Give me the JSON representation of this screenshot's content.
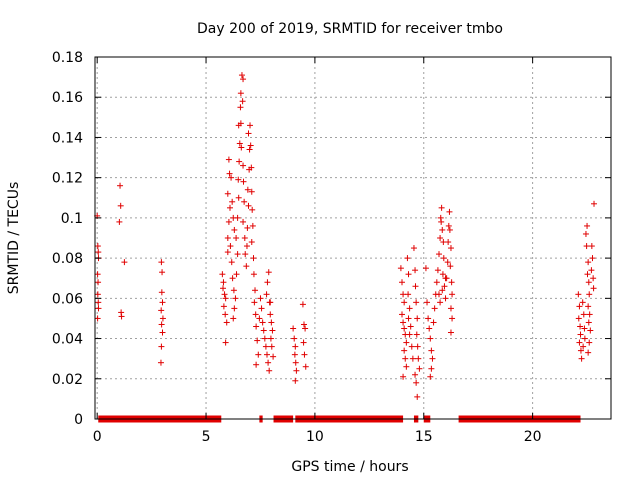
{
  "chart_data": {
    "type": "scatter",
    "title": "Day 200 of 2019, SRMTID for receiver tmbo",
    "xlabel": "GPS time / hours",
    "ylabel": "SRMTID / TECUs",
    "xlim": [
      -0.1,
      23.6
    ],
    "ylim": [
      0,
      0.18
    ],
    "xticks": [
      0,
      5,
      10,
      15,
      20
    ],
    "xtick_labels": [
      "0",
      "5",
      "10",
      "15",
      "20"
    ],
    "yticks": [
      0,
      0.02,
      0.04,
      0.06,
      0.08,
      0.1,
      0.12,
      0.14,
      0.16,
      0.18
    ],
    "ytick_labels": [
      "0",
      "0.02",
      "0.04",
      "0.06",
      "0.08",
      "0.1",
      "0.12",
      "0.14",
      "0.16",
      "0.18"
    ],
    "grid": true,
    "marker": "+",
    "color": "#e00000",
    "zero_line_segments": [
      [
        0.05,
        5.7
      ],
      [
        7.45,
        7.6
      ],
      [
        8.1,
        9.0
      ],
      [
        9.1,
        14.05
      ],
      [
        14.55,
        14.75
      ],
      [
        15.0,
        15.3
      ],
      [
        16.6,
        22.2
      ]
    ],
    "series": [
      {
        "name": "SRMTID",
        "points": [
          [
            0.0,
            0.101
          ],
          [
            0.03,
            0.086
          ],
          [
            0.05,
            0.083
          ],
          [
            0.06,
            0.08
          ],
          [
            0.02,
            0.072
          ],
          [
            0.04,
            0.068
          ],
          [
            0.03,
            0.062
          ],
          [
            0.05,
            0.058
          ],
          [
            0.06,
            0.055
          ],
          [
            0.02,
            0.05
          ],
          [
            1.05,
            0.116
          ],
          [
            1.08,
            0.106
          ],
          [
            1.02,
            0.098
          ],
          [
            1.25,
            0.078
          ],
          [
            1.1,
            0.053
          ],
          [
            1.12,
            0.051
          ],
          [
            2.95,
            0.078
          ],
          [
            2.98,
            0.073
          ],
          [
            2.97,
            0.063
          ],
          [
            3.0,
            0.058
          ],
          [
            2.94,
            0.054
          ],
          [
            3.02,
            0.05
          ],
          [
            2.96,
            0.047
          ],
          [
            3.0,
            0.043
          ],
          [
            2.95,
            0.036
          ],
          [
            2.93,
            0.028
          ],
          [
            5.75,
            0.072
          ],
          [
            5.8,
            0.068
          ],
          [
            5.78,
            0.065
          ],
          [
            5.85,
            0.062
          ],
          [
            5.9,
            0.06
          ],
          [
            5.82,
            0.056
          ],
          [
            5.88,
            0.052
          ],
          [
            5.95,
            0.048
          ],
          [
            5.9,
            0.038
          ],
          [
            6.0,
            0.083
          ],
          [
            6.0,
            0.09
          ],
          [
            6.05,
            0.098
          ],
          [
            6.1,
            0.105
          ],
          [
            6.0,
            0.112
          ],
          [
            6.08,
            0.122
          ],
          [
            6.05,
            0.129
          ],
          [
            6.15,
            0.12
          ],
          [
            6.2,
            0.108
          ],
          [
            6.25,
            0.1
          ],
          [
            6.3,
            0.094
          ],
          [
            6.12,
            0.086
          ],
          [
            6.18,
            0.078
          ],
          [
            6.22,
            0.07
          ],
          [
            6.28,
            0.064
          ],
          [
            6.35,
            0.06
          ],
          [
            6.3,
            0.055
          ],
          [
            6.25,
            0.05
          ],
          [
            6.4,
            0.072
          ],
          [
            6.45,
            0.082
          ],
          [
            6.38,
            0.09
          ],
          [
            6.45,
            0.1
          ],
          [
            6.5,
            0.11
          ],
          [
            6.48,
            0.119
          ],
          [
            6.52,
            0.128
          ],
          [
            6.55,
            0.137
          ],
          [
            6.5,
            0.146
          ],
          [
            6.58,
            0.155
          ],
          [
            6.6,
            0.162
          ],
          [
            6.65,
            0.171
          ],
          [
            6.7,
            0.169
          ],
          [
            6.68,
            0.158
          ],
          [
            6.6,
            0.147
          ],
          [
            6.62,
            0.135
          ],
          [
            6.7,
            0.126
          ],
          [
            6.72,
            0.118
          ],
          [
            6.75,
            0.108
          ],
          [
            6.7,
            0.098
          ],
          [
            6.78,
            0.09
          ],
          [
            6.8,
            0.082
          ],
          [
            6.85,
            0.076
          ],
          [
            6.88,
            0.086
          ],
          [
            6.9,
            0.095
          ],
          [
            6.95,
            0.106
          ],
          [
            6.92,
            0.114
          ],
          [
            6.98,
            0.124
          ],
          [
            7.0,
            0.134
          ],
          [
            6.95,
            0.142
          ],
          [
            7.02,
            0.146
          ],
          [
            7.05,
            0.136
          ],
          [
            7.08,
            0.125
          ],
          [
            7.1,
            0.113
          ],
          [
            7.12,
            0.104
          ],
          [
            7.15,
            0.096
          ],
          [
            7.1,
            0.088
          ],
          [
            7.18,
            0.08
          ],
          [
            7.2,
            0.072
          ],
          [
            7.25,
            0.064
          ],
          [
            7.22,
            0.058
          ],
          [
            7.28,
            0.052
          ],
          [
            7.3,
            0.046
          ],
          [
            7.35,
            0.039
          ],
          [
            7.4,
            0.032
          ],
          [
            7.3,
            0.027
          ],
          [
            7.45,
            0.05
          ],
          [
            7.5,
            0.06
          ],
          [
            7.55,
            0.055
          ],
          [
            7.6,
            0.048
          ],
          [
            7.65,
            0.044
          ],
          [
            7.7,
            0.04
          ],
          [
            7.75,
            0.036
          ],
          [
            7.8,
            0.032
          ],
          [
            7.85,
            0.028
          ],
          [
            7.9,
            0.024
          ],
          [
            7.78,
            0.062
          ],
          [
            7.82,
            0.068
          ],
          [
            7.88,
            0.073
          ],
          [
            7.92,
            0.058
          ],
          [
            7.95,
            0.052
          ],
          [
            8.0,
            0.048
          ],
          [
            8.05,
            0.044
          ],
          [
            7.98,
            0.04
          ],
          [
            8.02,
            0.036
          ],
          [
            8.08,
            0.031
          ],
          [
            7.95,
            0.058
          ],
          [
            9.0,
            0.045
          ],
          [
            9.05,
            0.04
          ],
          [
            9.1,
            0.036
          ],
          [
            9.08,
            0.032
          ],
          [
            9.12,
            0.028
          ],
          [
            9.15,
            0.024
          ],
          [
            9.1,
            0.019
          ],
          [
            9.45,
            0.057
          ],
          [
            9.5,
            0.047
          ],
          [
            9.55,
            0.045
          ],
          [
            9.48,
            0.038
          ],
          [
            9.52,
            0.032
          ],
          [
            9.58,
            0.026
          ],
          [
            13.95,
            0.075
          ],
          [
            14.0,
            0.068
          ],
          [
            14.05,
            0.062
          ],
          [
            14.1,
            0.058
          ],
          [
            14.0,
            0.052
          ],
          [
            14.05,
            0.048
          ],
          [
            14.1,
            0.045
          ],
          [
            14.15,
            0.042
          ],
          [
            14.2,
            0.038
          ],
          [
            14.1,
            0.034
          ],
          [
            14.15,
            0.03
          ],
          [
            14.2,
            0.026
          ],
          [
            14.05,
            0.021
          ],
          [
            14.25,
            0.08
          ],
          [
            14.3,
            0.072
          ],
          [
            14.28,
            0.062
          ],
          [
            14.35,
            0.055
          ],
          [
            14.3,
            0.05
          ],
          [
            14.4,
            0.046
          ],
          [
            14.35,
            0.042
          ],
          [
            14.45,
            0.036
          ],
          [
            14.5,
            0.03
          ],
          [
            14.55,
            0.085
          ],
          [
            14.6,
            0.074
          ],
          [
            14.62,
            0.066
          ],
          [
            14.65,
            0.058
          ],
          [
            14.7,
            0.05
          ],
          [
            14.68,
            0.042
          ],
          [
            14.72,
            0.036
          ],
          [
            14.75,
            0.03
          ],
          [
            14.6,
            0.022
          ],
          [
            14.65,
            0.018
          ],
          [
            14.7,
            0.011
          ],
          [
            14.8,
            0.025
          ],
          [
            15.1,
            0.075
          ],
          [
            15.15,
            0.058
          ],
          [
            15.2,
            0.05
          ],
          [
            15.25,
            0.045
          ],
          [
            15.3,
            0.04
          ],
          [
            15.35,
            0.034
          ],
          [
            15.4,
            0.03
          ],
          [
            15.35,
            0.025
          ],
          [
            15.3,
            0.021
          ],
          [
            15.45,
            0.048
          ],
          [
            15.5,
            0.055
          ],
          [
            15.55,
            0.062
          ],
          [
            15.6,
            0.068
          ],
          [
            15.65,
            0.074
          ],
          [
            15.7,
            0.082
          ],
          [
            15.75,
            0.09
          ],
          [
            15.8,
            0.098
          ],
          [
            15.82,
            0.105
          ],
          [
            15.78,
            0.1
          ],
          [
            15.85,
            0.094
          ],
          [
            15.9,
            0.088
          ],
          [
            15.92,
            0.08
          ],
          [
            15.88,
            0.072
          ],
          [
            15.95,
            0.066
          ],
          [
            16.0,
            0.06
          ],
          [
            16.05,
            0.07
          ],
          [
            16.1,
            0.078
          ],
          [
            16.12,
            0.088
          ],
          [
            16.15,
            0.096
          ],
          [
            16.18,
            0.103
          ],
          [
            16.2,
            0.094
          ],
          [
            16.25,
            0.085
          ],
          [
            16.22,
            0.076
          ],
          [
            16.28,
            0.068
          ],
          [
            16.3,
            0.062
          ],
          [
            16.25,
            0.055
          ],
          [
            16.3,
            0.05
          ],
          [
            16.25,
            0.043
          ],
          [
            15.7,
            0.062
          ],
          [
            15.75,
            0.058
          ],
          [
            15.85,
            0.064
          ],
          [
            16.0,
            0.07
          ],
          [
            22.1,
            0.062
          ],
          [
            22.15,
            0.056
          ],
          [
            22.12,
            0.05
          ],
          [
            22.18,
            0.046
          ],
          [
            22.2,
            0.042
          ],
          [
            22.15,
            0.038
          ],
          [
            22.22,
            0.034
          ],
          [
            22.25,
            0.03
          ],
          [
            22.3,
            0.058
          ],
          [
            22.35,
            0.052
          ],
          [
            22.38,
            0.045
          ],
          [
            22.4,
            0.04
          ],
          [
            22.32,
            0.036
          ],
          [
            22.45,
            0.092
          ],
          [
            22.5,
            0.096
          ],
          [
            22.48,
            0.086
          ],
          [
            22.55,
            0.078
          ],
          [
            22.52,
            0.072
          ],
          [
            22.58,
            0.068
          ],
          [
            22.6,
            0.062
          ],
          [
            22.55,
            0.056
          ],
          [
            22.62,
            0.052
          ],
          [
            22.58,
            0.048
          ],
          [
            22.65,
            0.044
          ],
          [
            22.6,
            0.038
          ],
          [
            22.55,
            0.033
          ],
          [
            22.7,
            0.074
          ],
          [
            22.75,
            0.08
          ],
          [
            22.72,
            0.086
          ],
          [
            22.78,
            0.07
          ],
          [
            22.8,
            0.065
          ],
          [
            22.82,
            0.107
          ]
        ]
      }
    ]
  }
}
